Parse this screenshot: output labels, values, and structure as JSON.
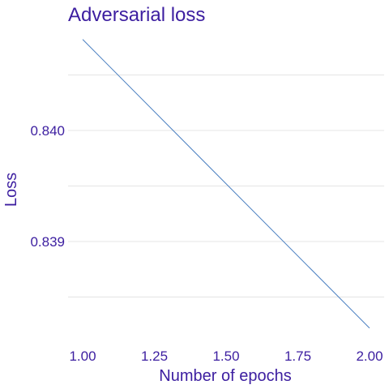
{
  "chart_data": {
    "type": "line",
    "title": "Adversarial loss",
    "xlabel": "Number of epochs",
    "ylabel": "Loss",
    "x_ticks": [
      "1.00",
      "1.25",
      "1.50",
      "1.75",
      "2.00"
    ],
    "x_tick_values": [
      1.0,
      1.25,
      1.5,
      1.75,
      2.0
    ],
    "y_ticks": [
      "0.839",
      "0.840"
    ],
    "y_tick_values": [
      0.839,
      0.84
    ],
    "y_minor_gridlines": [
      0.8385,
      0.8395,
      0.8405
    ],
    "xlim": [
      1.0,
      2.0
    ],
    "ylim": [
      0.83825,
      0.84085
    ],
    "grid": true,
    "series": [
      {
        "color": "#4a7fc1",
        "x": [
          1.0,
          2.0
        ],
        "y": [
          0.84082,
          0.83822
        ]
      }
    ]
  }
}
